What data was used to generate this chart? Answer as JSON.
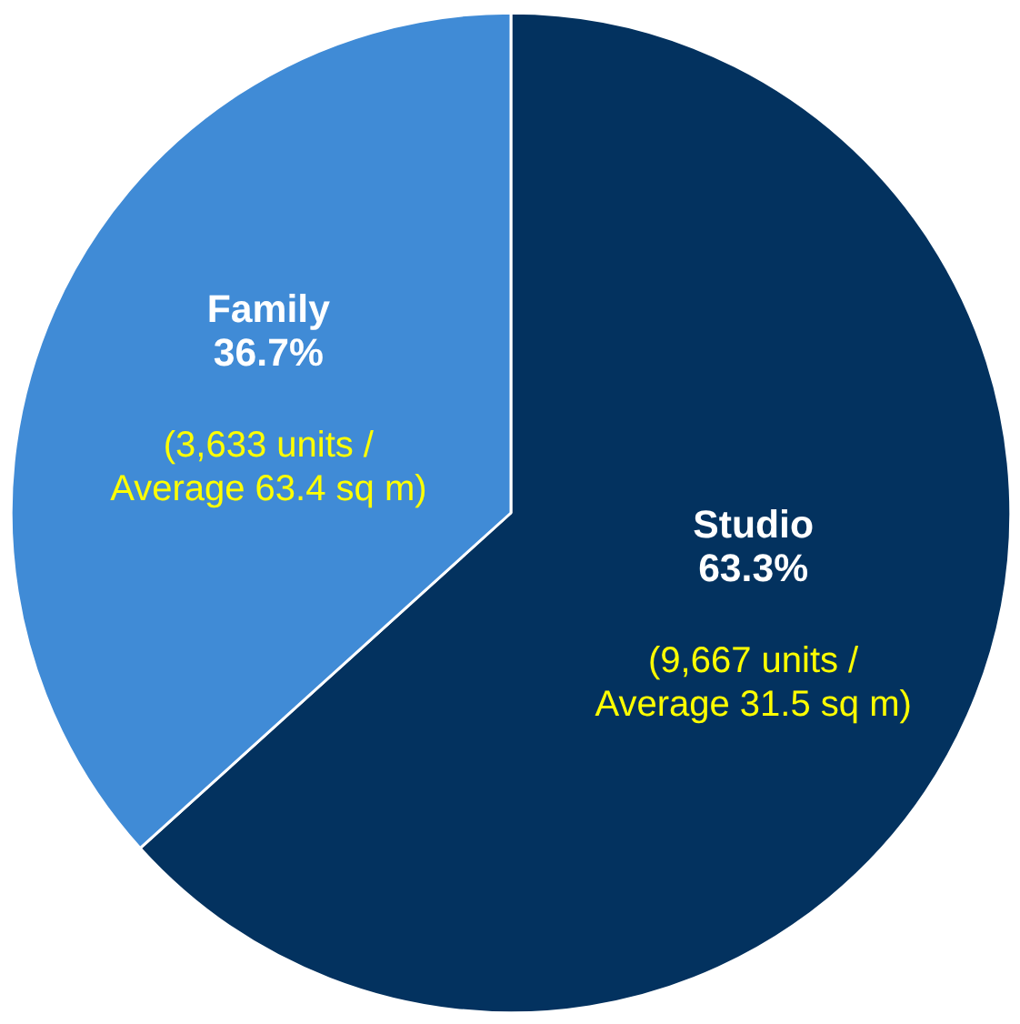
{
  "chart_data": {
    "type": "pie",
    "categories": [
      "Studio",
      "Family"
    ],
    "values": [
      63.3,
      36.7
    ],
    "colors": [
      "#03325f",
      "#408bd6"
    ],
    "value_labels": [
      "63.3%",
      "36.7%"
    ],
    "annotations": [
      "(9,667 units /\nAverage 31.5 sq m)",
      "(3,633 units /\nAverage 63.4 sq m)"
    ],
    "legend": false
  }
}
